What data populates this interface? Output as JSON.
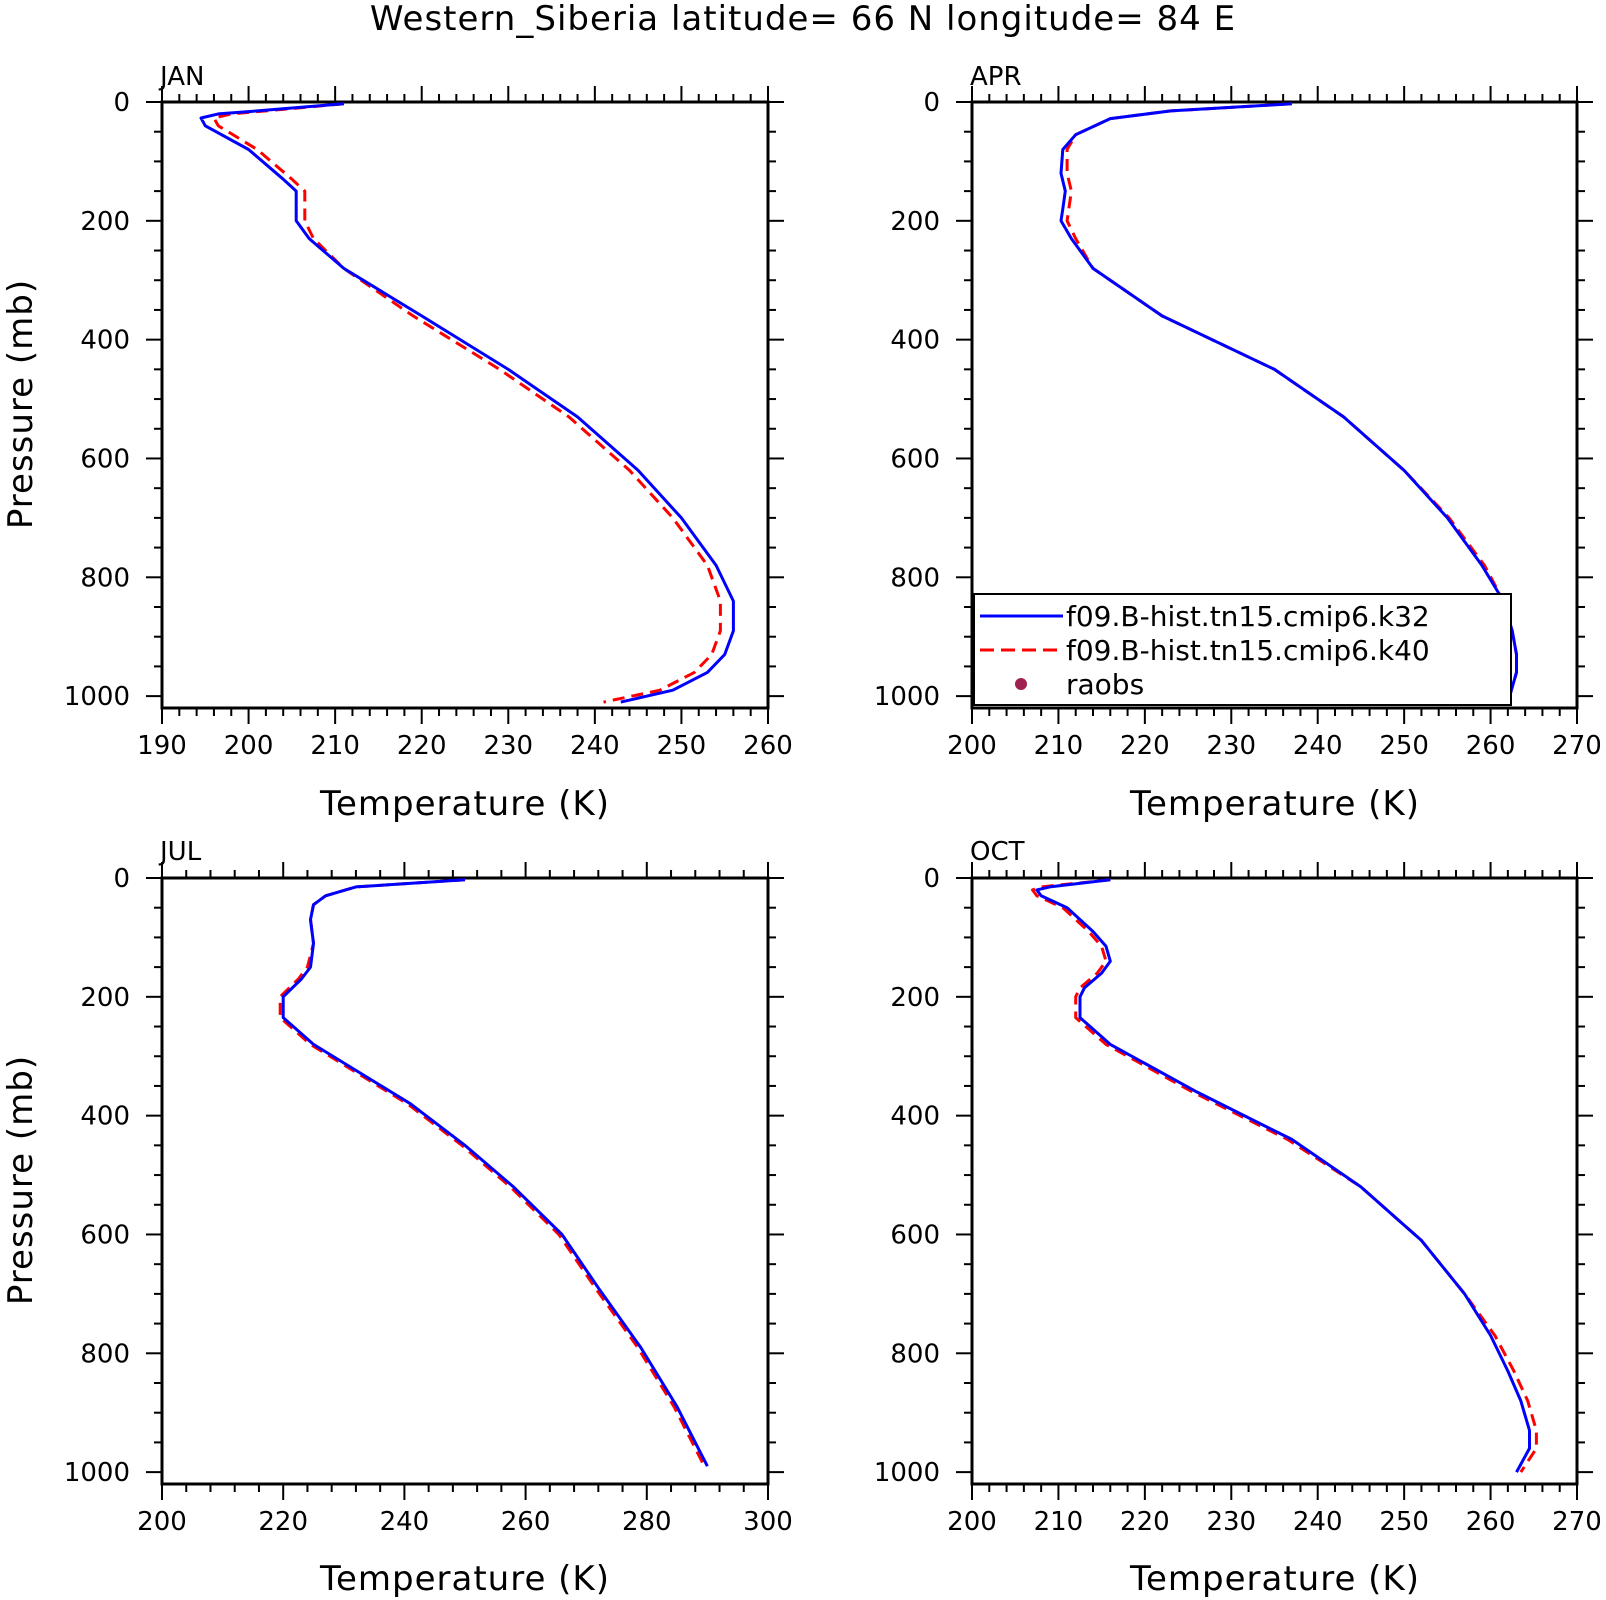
{
  "figure": {
    "title": "Western_Siberia  latitude= 66 N longitude= 84 E"
  },
  "legend": {
    "entries": [
      {
        "label": "f09.B-hist.tn15.cmip6.k32",
        "color": "#0000ff",
        "style": "solid"
      },
      {
        "label": "f09.B-hist.tn15.cmip6.k40",
        "color": "#ff0000",
        "style": "dashed"
      },
      {
        "label": "raobs",
        "color": "#a02050",
        "style": "marker"
      }
    ]
  },
  "chart_data": [
    {
      "type": "line",
      "title": "JAN",
      "xlabel": "Temperature (K)",
      "ylabel": "Pressure (mb)",
      "xlim": [
        190,
        260
      ],
      "ylim": [
        1020,
        0
      ],
      "xticks": [
        190,
        200,
        210,
        220,
        230,
        240,
        250,
        260
      ],
      "yticks": [
        0,
        200,
        400,
        600,
        800,
        1000
      ],
      "series": [
        {
          "name": "f09.B-hist.tn15.cmip6.k32",
          "color": "#0000ff",
          "style": "solid",
          "x": [
            211,
            201,
            196.5,
            194.5,
            195,
            200,
            204,
            205.5,
            205.5,
            207,
            211,
            220,
            230,
            238,
            245,
            250,
            254,
            256,
            256,
            255,
            253,
            249,
            243
          ],
          "y": [
            3,
            15,
            20,
            27,
            40,
            80,
            130,
            150,
            200,
            230,
            280,
            360,
            450,
            530,
            620,
            700,
            780,
            840,
            890,
            930,
            960,
            990,
            1010
          ]
        },
        {
          "name": "f09.B-hist.tn15.cmip6.k40",
          "color": "#ff0000",
          "style": "dashed",
          "x": [
            211,
            202,
            198,
            196,
            196.5,
            201,
            205,
            206.5,
            206.5,
            207.5,
            211,
            219,
            229,
            237,
            244,
            249,
            253,
            254.5,
            254.5,
            253.5,
            251.5,
            247.5,
            241
          ],
          "y": [
            3,
            15,
            20,
            27,
            40,
            80,
            130,
            150,
            200,
            230,
            280,
            360,
            450,
            530,
            620,
            700,
            780,
            840,
            890,
            930,
            960,
            990,
            1010
          ]
        }
      ]
    },
    {
      "type": "line",
      "title": "APR",
      "xlabel": "Temperature (K)",
      "ylabel": "",
      "xlim": [
        200,
        270
      ],
      "ylim": [
        1020,
        0
      ],
      "xticks": [
        200,
        210,
        220,
        230,
        240,
        250,
        260,
        270
      ],
      "yticks": [
        0,
        200,
        400,
        600,
        800,
        1000
      ],
      "series": [
        {
          "name": "f09.B-hist.tn15.cmip6.k32",
          "color": "#0000ff",
          "style": "solid",
          "x": [
            237,
            223,
            216,
            212,
            210.5,
            210.3,
            210.8,
            210.5,
            210.3,
            211.5,
            214,
            222,
            235,
            243,
            250,
            255,
            259,
            261.5,
            262.5,
            263,
            263,
            262
          ],
          "y": [
            3,
            15,
            28,
            55,
            80,
            120,
            150,
            180,
            200,
            230,
            280,
            360,
            450,
            530,
            620,
            700,
            780,
            840,
            890,
            930,
            960,
            1010
          ]
        },
        {
          "name": "f09.B-hist.tn15.cmip6.k40",
          "color": "#ff0000",
          "style": "dashed",
          "x": [
            237,
            223,
            216,
            212,
            211,
            211,
            211.5,
            211.2,
            211,
            212,
            214,
            222,
            235,
            243,
            250,
            255.2,
            259.3,
            261.5,
            262.5,
            263,
            263,
            262
          ],
          "y": [
            3,
            15,
            28,
            55,
            80,
            120,
            150,
            180,
            200,
            230,
            280,
            360,
            450,
            530,
            620,
            700,
            780,
            840,
            890,
            930,
            960,
            1010
          ]
        }
      ]
    },
    {
      "type": "line",
      "title": "JUL",
      "xlabel": "Temperature (K)",
      "ylabel": "Pressure (mb)",
      "xlim": [
        200,
        300
      ],
      "ylim": [
        1020,
        0
      ],
      "xticks": [
        200,
        220,
        240,
        260,
        280,
        300
      ],
      "yticks": [
        0,
        200,
        400,
        600,
        800,
        1000
      ],
      "series": [
        {
          "name": "f09.B-hist.tn15.cmip6.k32",
          "color": "#0000ff",
          "style": "solid",
          "x": [
            250,
            232,
            227,
            225,
            224.5,
            225,
            224.5,
            223,
            220,
            220,
            225,
            233,
            241,
            250,
            258,
            266,
            272,
            279,
            285,
            289,
            290
          ],
          "y": [
            3,
            15,
            30,
            45,
            70,
            110,
            150,
            170,
            200,
            235,
            280,
            330,
            380,
            450,
            520,
            600,
            690,
            790,
            890,
            970,
            990
          ]
        },
        {
          "name": "f09.B-hist.tn15.cmip6.k40",
          "color": "#ff0000",
          "style": "dashed",
          "x": [
            250,
            232,
            227,
            225,
            224.5,
            225,
            224,
            222.5,
            219.5,
            219.5,
            224.5,
            232.5,
            240.5,
            249.5,
            257.5,
            265.5,
            271.5,
            278.5,
            284.5,
            288.5,
            289.5
          ],
          "y": [
            3,
            15,
            30,
            45,
            70,
            110,
            150,
            170,
            200,
            235,
            280,
            330,
            380,
            450,
            520,
            600,
            690,
            790,
            890,
            970,
            990
          ]
        }
      ]
    },
    {
      "type": "line",
      "title": "OCT",
      "xlabel": "Temperature (K)",
      "ylabel": "",
      "xlim": [
        200,
        270
      ],
      "ylim": [
        1020,
        0
      ],
      "xticks": [
        200,
        210,
        220,
        230,
        240,
        250,
        260,
        270
      ],
      "yticks": [
        0,
        200,
        400,
        600,
        800,
        1000
      ],
      "series": [
        {
          "name": "f09.B-hist.tn15.cmip6.k32",
          "color": "#0000ff",
          "style": "solid",
          "x": [
            216,
            209,
            207.5,
            208,
            211,
            214,
            215.5,
            216,
            215,
            213,
            212.5,
            212.5,
            216,
            226,
            237,
            245,
            252,
            257,
            260,
            262,
            263.5,
            264.5,
            264.5,
            263
          ],
          "y": [
            3,
            15,
            20,
            30,
            50,
            90,
            115,
            140,
            160,
            185,
            200,
            235,
            280,
            360,
            440,
            520,
            610,
            700,
            770,
            830,
            880,
            930,
            960,
            1000
          ]
        },
        {
          "name": "f09.B-hist.tn15.cmip6.k40",
          "color": "#ff0000",
          "style": "dashed",
          "x": [
            216,
            208,
            207,
            207.5,
            210.5,
            213.5,
            215,
            215.5,
            214.5,
            212.5,
            212,
            212,
            215.5,
            225.5,
            236.5,
            245,
            252,
            257,
            260.5,
            262.7,
            264.3,
            265.3,
            265.3,
            263.5
          ],
          "y": [
            3,
            15,
            20,
            30,
            50,
            90,
            115,
            140,
            160,
            185,
            200,
            235,
            280,
            360,
            440,
            520,
            610,
            700,
            770,
            830,
            880,
            930,
            960,
            1000
          ]
        }
      ]
    }
  ]
}
